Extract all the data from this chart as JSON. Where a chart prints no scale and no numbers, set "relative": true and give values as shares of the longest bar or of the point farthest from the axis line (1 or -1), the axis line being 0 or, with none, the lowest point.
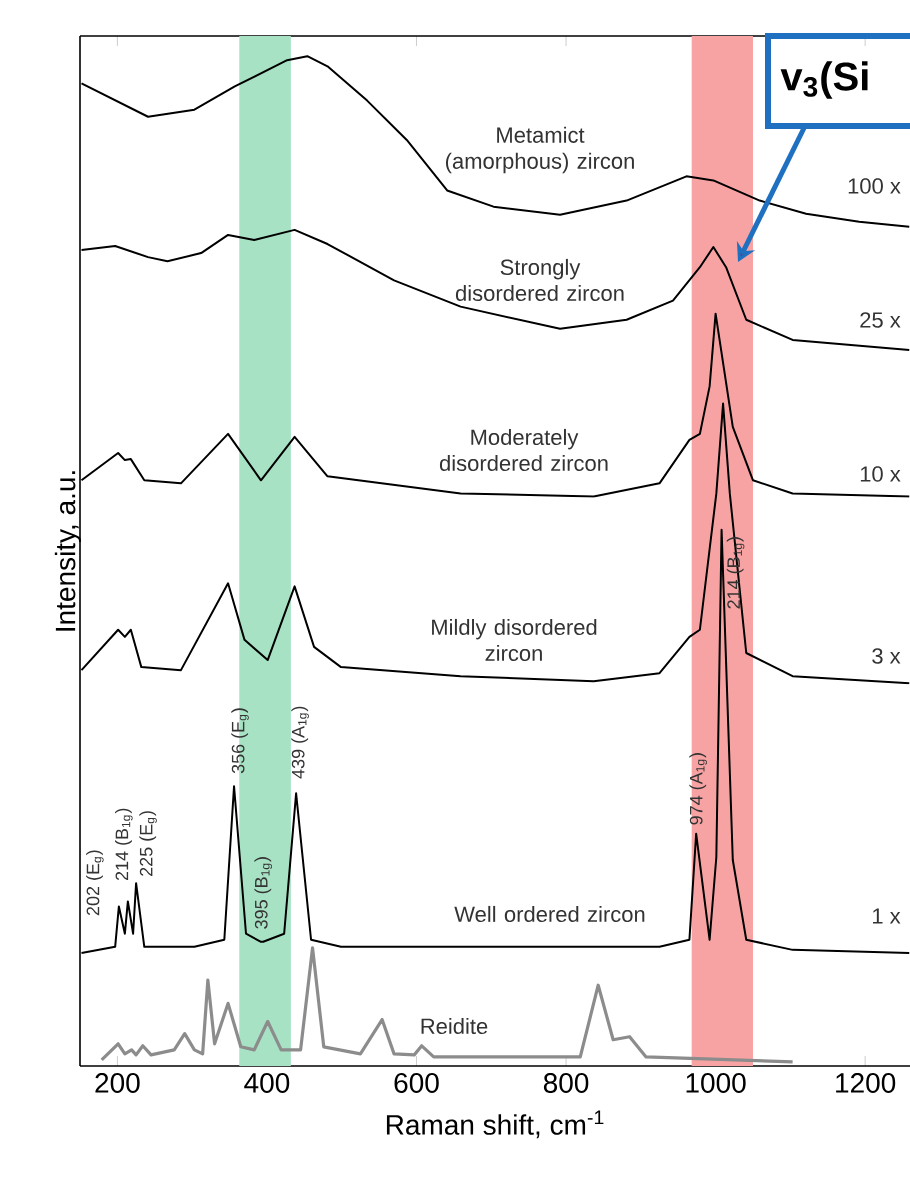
{
  "chart_data": {
    "type": "line",
    "relative": true,
    "xlabel": "Raman shift, cm$^{-1}$",
    "ylabel": "Intensity, a.u.",
    "xlim": [
      150,
      1260
    ],
    "xticks": [
      200,
      400,
      600,
      800,
      1000,
      1200
    ],
    "series": [
      {
        "name": "Metamict (amorphous) zircon",
        "color": "#000000",
        "x": [
          152,
          241,
          303,
          357,
          427,
          454,
          481,
          534,
          587,
          641,
          703,
          792,
          881,
          961,
          997,
          1059,
          1121,
          1192,
          1259
        ],
        "values": [
          0.973,
          0.94,
          0.947,
          0.97,
          0.996,
          1.0,
          0.99,
          0.956,
          0.917,
          0.867,
          0.851,
          0.843,
          0.857,
          0.881,
          0.877,
          0.857,
          0.844,
          0.836,
          0.831
        ]
      },
      {
        "name": "Strongly disordered zircon",
        "color": "#000000",
        "x": [
          152,
          197,
          241,
          267,
          312,
          348,
          383,
          437,
          481,
          570,
          659,
          792,
          881,
          943,
          979,
          997,
          1014,
          1041,
          1103,
          1259
        ],
        "values": [
          0.808,
          0.812,
          0.801,
          0.797,
          0.805,
          0.823,
          0.818,
          0.828,
          0.814,
          0.778,
          0.752,
          0.73,
          0.739,
          0.758,
          0.791,
          0.811,
          0.791,
          0.739,
          0.719,
          0.709
        ]
      },
      {
        "name": "Moderately disordered zircon",
        "color": "#000000",
        "x": [
          152,
          201,
          210,
          218,
          236,
          285,
          348,
          392,
          437,
          481,
          659,
          837,
          925,
          965,
          979,
          992,
          1000,
          1023,
          1050,
          1103,
          1259
        ],
        "values": [
          0.58,
          0.607,
          0.6,
          0.601,
          0.58,
          0.577,
          0.626,
          0.58,
          0.623,
          0.584,
          0.567,
          0.564,
          0.577,
          0.62,
          0.626,
          0.673,
          0.745,
          0.633,
          0.58,
          0.567,
          0.564
        ]
      },
      {
        "name": "Mildly disordered zircon",
        "color": "#000000",
        "x": [
          152,
          201,
          210,
          218,
          232,
          285,
          348,
          370,
          401,
          437,
          463,
          499,
          659,
          837,
          925,
          965,
          979,
          1001,
          1010,
          1019,
          1041,
          1103,
          1259
        ],
        "values": [
          0.392,
          0.432,
          0.425,
          0.432,
          0.395,
          0.392,
          0.478,
          0.422,
          0.402,
          0.475,
          0.415,
          0.395,
          0.386,
          0.381,
          0.389,
          0.425,
          0.432,
          0.567,
          0.656,
          0.567,
          0.409,
          0.386,
          0.379
        ]
      },
      {
        "name": "Well ordered zircon",
        "color": "#000000",
        "x": [
          152,
          197,
          202,
          210,
          214,
          221,
          225,
          236,
          303,
          343,
          356,
          372,
          392,
          395,
          423,
          439,
          459,
          499,
          925,
          965,
          974,
          992,
          1001,
          1008,
          1023,
          1041,
          1103,
          1259
        ],
        "values": [
          0.112,
          0.118,
          0.158,
          0.131,
          0.163,
          0.131,
          0.181,
          0.118,
          0.118,
          0.125,
          0.277,
          0.131,
          0.123,
          0.123,
          0.131,
          0.27,
          0.125,
          0.118,
          0.118,
          0.125,
          0.23,
          0.125,
          0.207,
          0.531,
          0.204,
          0.125,
          0.115,
          0.112
        ]
      },
      {
        "name": "Reidite",
        "color": "#8c8c8c",
        "x": [
          179,
          201,
          210,
          219,
          225,
          234,
          245,
          276,
          290,
          303,
          314,
          321,
          330,
          348,
          365,
          383,
          401,
          419,
          445,
          461,
          476,
          525,
          554,
          570,
          597,
          607,
          623,
          819,
          843,
          863,
          885,
          907,
          1103
        ],
        "values": [
          0.006,
          0.022,
          0.012,
          0.016,
          0.011,
          0.02,
          0.011,
          0.016,
          0.032,
          0.016,
          0.012,
          0.085,
          0.022,
          0.062,
          0.019,
          0.016,
          0.044,
          0.016,
          0.016,
          0.117,
          0.019,
          0.012,
          0.046,
          0.012,
          0.011,
          0.02,
          0.009,
          0.009,
          0.08,
          0.026,
          0.029,
          0.009,
          0.004
        ]
      }
    ],
    "bands": [
      {
        "axis": "x",
        "from": 968,
        "to": 1050,
        "color": "#f8a3a3"
      },
      {
        "axis": "x",
        "from": 363,
        "to": 432,
        "color": "#a8e2c4"
      }
    ],
    "annotations": [
      "100 x",
      "25 x",
      "10 x",
      "3 x",
      "1 x",
      {
        "text": "202 (E$_{g}$)",
        "x": 202,
        "y": 0.158
      },
      {
        "text": "214 (B$_{1g}$)",
        "x": 214,
        "y": 0.163
      },
      {
        "text": "225 (E$_{g}$)",
        "x": 225,
        "y": 0.181
      },
      {
        "text": "356 (E$_{g}$)",
        "x": 356,
        "y": 0.277
      },
      {
        "text": "395 (B$_{1g}$)",
        "x": 395,
        "y": 0.123
      },
      {
        "text": "439 (A$_{1g}$)",
        "x": 439,
        "y": 0.27
      },
      {
        "text": "974 (A$_{1g}$)",
        "x": 974,
        "y": 0.23
      },
      {
        "text": "214 (B$_{1g}$)",
        "x": 1008,
        "y": 0.531
      },
      "v$_{3}$(Si"
    ]
  }
}
